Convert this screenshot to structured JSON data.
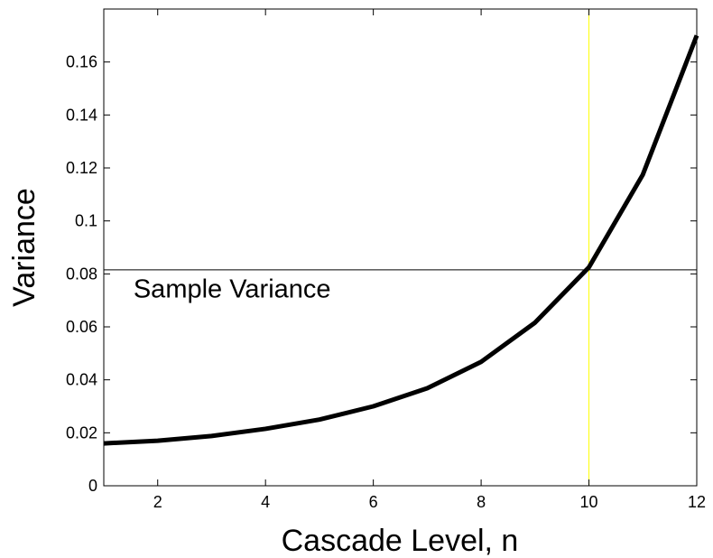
{
  "chart_data": {
    "type": "line",
    "title": "",
    "xlabel": "Cascade Level, n",
    "ylabel": "Variance",
    "xlim": [
      1,
      12
    ],
    "ylim": [
      0,
      0.18
    ],
    "x_ticks": [
      2,
      4,
      6,
      8,
      10,
      12
    ],
    "y_ticks": [
      0,
      0.02,
      0.04,
      0.06,
      0.08,
      0.1,
      0.12,
      0.14,
      0.16
    ],
    "grid": false,
    "series": [
      {
        "color": "#000000",
        "x": [
          1,
          2,
          3,
          4,
          5,
          6,
          7,
          8,
          9,
          10,
          11,
          12
        ],
        "y": [
          0.016,
          0.017,
          0.0188,
          0.0215,
          0.025,
          0.03,
          0.0368,
          0.0468,
          0.0616,
          0.0825,
          0.1175,
          0.17
        ]
      }
    ],
    "reference_lines": [
      {
        "orientation": "horizontal",
        "value": 0.0815,
        "color": "#000000"
      },
      {
        "orientation": "vertical",
        "value": 10,
        "color": "#ffff00"
      }
    ],
    "annotations": [
      {
        "text": "Sample Variance",
        "x": 1.55,
        "y": 0.071
      }
    ]
  }
}
